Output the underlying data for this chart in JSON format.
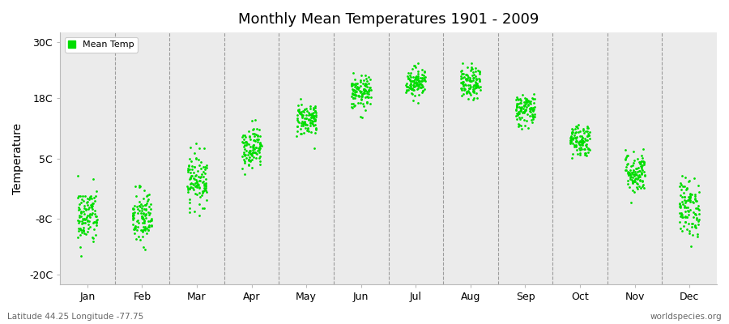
{
  "title": "Monthly Mean Temperatures 1901 - 2009",
  "ylabel": "Temperature",
  "yticks": [
    -20,
    -8,
    5,
    18,
    30
  ],
  "ytick_labels": [
    "-20C",
    "-8C",
    "5C",
    "18C",
    "30C"
  ],
  "ylim": [
    -22,
    32
  ],
  "months": [
    "Jan",
    "Feb",
    "Mar",
    "Apr",
    "May",
    "Jun",
    "Jul",
    "Aug",
    "Sep",
    "Oct",
    "Nov",
    "Dec"
  ],
  "xlim": [
    0,
    12
  ],
  "n_years": 109,
  "dot_color": "#00dd00",
  "bg_color": "#ebebeb",
  "legend_label": "Mean Temp",
  "subtitle_left": "Latitude 44.25 Longitude -77.75",
  "subtitle_right": "worldspecies.org",
  "mean_temps": [
    -7.5,
    -7.8,
    0.5,
    7.5,
    13.5,
    19.0,
    21.5,
    21.0,
    15.5,
    9.0,
    2.0,
    -5.5
  ],
  "std_temps": [
    3.2,
    3.2,
    2.8,
    2.2,
    1.8,
    1.8,
    1.6,
    1.7,
    1.8,
    1.8,
    2.3,
    3.2
  ],
  "x_jitter": 0.18,
  "dot_size": 4,
  "seed": 42
}
